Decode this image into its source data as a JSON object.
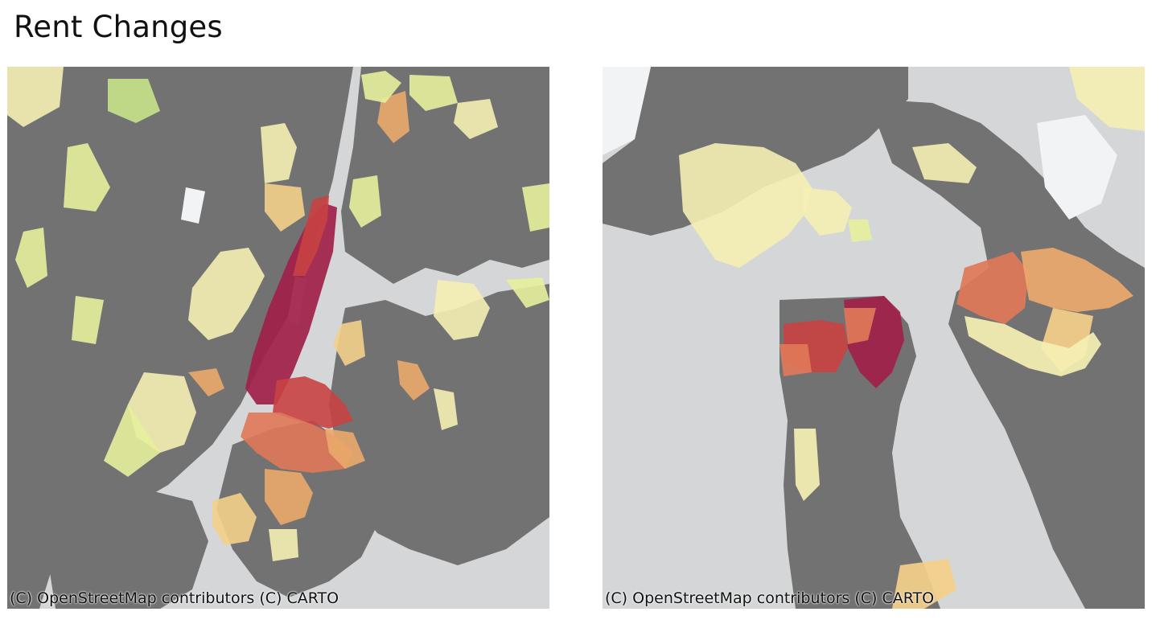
{
  "title": "Rent Changes",
  "maps": [
    {
      "id": "nyc",
      "attribution": "(C) OpenStreetMap contributors (C) CARTO"
    },
    {
      "id": "sf",
      "attribution": "(C) OpenStreetMap contributors (C) CARTO"
    }
  ],
  "colors": {
    "water": "#d4d6d8",
    "land": "#727272",
    "park": "#f2f3f4",
    "scale": [
      "#a11f4a",
      "#c84242",
      "#e07858",
      "#eba96c",
      "#f4d08a",
      "#f5f0b2",
      "#e6ef9c",
      "#c6e38a"
    ]
  }
}
